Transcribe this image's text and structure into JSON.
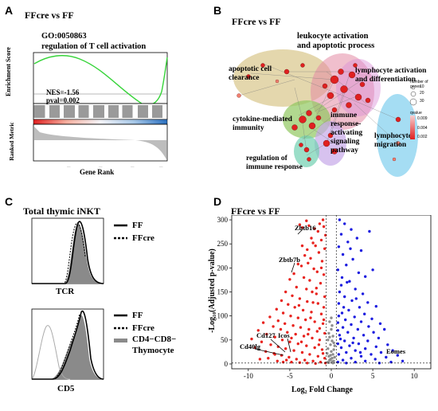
{
  "panels": {
    "A": {
      "label": "A",
      "title": "FFcre vs FF",
      "go_id": "GO:0050863",
      "term": "regulation of T cell activation",
      "nes": "NES=-1.56",
      "pval": "pval=0.002",
      "ylabel_top": "Enrichment Score",
      "ylabel_bottom": "Ranked Metric",
      "xlabel": "Gene Rank"
    },
    "B": {
      "label": "B",
      "title": "FFcre vs FF",
      "clusters": [
        "leukocyte activation\nand apoptotic process",
        "apoptotic cell\nclearance",
        "lymphocyte activation\nand differentiation",
        "cytokine-mediated\nimmunity",
        "immune\nresponse-\nactivating\nsignaling\npathway",
        "lymphocyte\nmigration",
        "regulation of\nimmune response"
      ],
      "legend_size_title": "number of genes",
      "legend_sizes": [
        "10",
        "20",
        "30"
      ],
      "legend_q_title": "qvalue",
      "legend_q_ticks": [
        "0.009",
        "0.004",
        "0.002"
      ]
    },
    "C": {
      "label": "C",
      "title": "Total thymic iNKT",
      "top_legend": [
        "FF",
        "FFcre"
      ],
      "top_xlabel": "TCR",
      "bottom_legend": [
        "FF",
        "FFcre",
        "CD4−CD8−",
        "Thymocyte"
      ],
      "bottom_xlabel": "CD5"
    },
    "D": {
      "label": "D",
      "title": "FFcre vs FF",
      "genes": [
        "Zbtb16",
        "Zbtb7b",
        "Cd127",
        "Icos",
        "Cd40lg",
        "Eomes"
      ]
    }
  },
  "chart_data": {
    "type": "scatter",
    "xlabel": "Log₂ Fold Change",
    "ylabel": "-Log₁₀(Adjusted p-value)",
    "xlim": [
      -12,
      12
    ],
    "ylim": [
      -10,
      310
    ],
    "xticks": [
      -10,
      -5,
      0,
      5,
      10
    ],
    "yticks": [
      0,
      50,
      100,
      150,
      200,
      250,
      300
    ],
    "grid": false,
    "colors": {
      "down": "#e8231e",
      "up": "#1c1ce0",
      "ns": "#8c8c8c"
    },
    "series": [
      {
        "group": "down",
        "points": [
          [
            -1.0,
            300
          ],
          [
            -1.4,
            292
          ],
          [
            -0.9,
            286
          ],
          [
            -2.0,
            282
          ],
          [
            -1.6,
            276
          ],
          [
            -0.7,
            268
          ],
          [
            -2.4,
            262
          ],
          [
            -1.2,
            258
          ],
          [
            -3.0,
            298
          ],
          [
            -2.7,
            288
          ],
          [
            -3.8,
            290
          ],
          [
            -3.5,
            284
          ],
          [
            -2.2,
            252
          ],
          [
            -1.9,
            246
          ],
          [
            -0.8,
            240
          ],
          [
            -2.9,
            238
          ],
          [
            -1.5,
            232
          ],
          [
            -3.2,
            226
          ],
          [
            -2.5,
            220
          ],
          [
            -1.1,
            214
          ],
          [
            -4.0,
            208
          ],
          [
            -3.6,
            204
          ],
          [
            -2.1,
            198
          ],
          [
            -1.7,
            192
          ],
          [
            -0.9,
            186
          ],
          [
            -4.5,
            188
          ],
          [
            -3.3,
            180
          ],
          [
            -2.6,
            174
          ],
          [
            -1.3,
            168
          ],
          [
            -5.0,
            176
          ],
          [
            -4.2,
            160
          ],
          [
            -3.0,
            156
          ],
          [
            -2.3,
            150
          ],
          [
            -1.8,
            146
          ],
          [
            -0.8,
            140
          ],
          [
            -5.5,
            150
          ],
          [
            -4.7,
            142
          ],
          [
            -3.8,
            136
          ],
          [
            -2.9,
            130
          ],
          [
            -1.6,
            126
          ],
          [
            -6.0,
            132
          ],
          [
            -5.2,
            124
          ],
          [
            -4.4,
            118
          ],
          [
            -3.4,
            112
          ],
          [
            -2.4,
            108
          ],
          [
            -1.2,
            104
          ],
          [
            -6.6,
            114
          ],
          [
            -5.8,
            106
          ],
          [
            -4.9,
            100
          ],
          [
            -4.0,
            96
          ],
          [
            -3.1,
            92
          ],
          [
            -2.0,
            88
          ],
          [
            -1.0,
            84
          ],
          [
            -7.4,
            98
          ],
          [
            -6.4,
            90
          ],
          [
            -5.6,
            84
          ],
          [
            -4.6,
            80
          ],
          [
            -3.7,
            76
          ],
          [
            -2.7,
            72
          ],
          [
            -1.7,
            68
          ],
          [
            -0.8,
            64
          ],
          [
            -8.2,
            86
          ],
          [
            -7.0,
            78
          ],
          [
            -6.1,
            72
          ],
          [
            -5.3,
            66
          ],
          [
            -4.3,
            62
          ],
          [
            -3.3,
            58
          ],
          [
            -2.3,
            54
          ],
          [
            -1.4,
            50
          ],
          [
            -8.8,
            70
          ],
          [
            -7.8,
            62
          ],
          [
            -6.8,
            56
          ],
          [
            -5.9,
            50
          ],
          [
            -5.0,
            46
          ],
          [
            -4.0,
            42
          ],
          [
            -3.0,
            38
          ],
          [
            -2.0,
            34
          ],
          [
            -1.1,
            30
          ],
          [
            -9.6,
            52
          ],
          [
            -8.4,
            46
          ],
          [
            -7.3,
            40
          ],
          [
            -6.4,
            36
          ],
          [
            -5.5,
            32
          ],
          [
            -4.5,
            28
          ],
          [
            -3.5,
            24
          ],
          [
            -2.6,
            20
          ],
          [
            -1.6,
            16
          ],
          [
            -0.8,
            12
          ],
          [
            -9.2,
            34
          ],
          [
            -7.9,
            26
          ],
          [
            -6.9,
            22
          ],
          [
            -6.0,
            18
          ],
          [
            -5.1,
            14
          ],
          [
            -4.2,
            10
          ],
          [
            -3.2,
            8
          ],
          [
            -2.2,
            6
          ],
          [
            -1.3,
            4
          ],
          [
            -0.7,
            2
          ],
          [
            -5.4,
            8
          ],
          [
            -4.8,
            4
          ],
          [
            -3.8,
            3
          ],
          [
            -2.9,
            2
          ],
          [
            -1.9,
            1
          ],
          [
            -1.0,
            22
          ],
          [
            -1.5,
            40
          ],
          [
            -2.5,
            96
          ],
          [
            -3.9,
            122
          ],
          [
            -1.2,
            200
          ],
          [
            -2.8,
            210
          ],
          [
            -3.5,
            246
          ],
          [
            -0.9,
            118
          ],
          [
            -1.8,
            158
          ],
          [
            -2.2,
            128
          ],
          [
            -1.4,
            74
          ],
          [
            -0.9,
            92
          ],
          [
            -4.8,
            54
          ],
          [
            -3.6,
            46
          ],
          [
            -2.8,
            62
          ],
          [
            -6.8,
            20
          ],
          [
            -7.6,
            12
          ],
          [
            -8.6,
            10
          ],
          [
            -5.8,
            4
          ],
          [
            -6.5,
            6
          ]
        ]
      },
      {
        "group": "up",
        "points": [
          [
            1.0,
            300
          ],
          [
            1.6,
            292
          ],
          [
            2.4,
            280
          ],
          [
            1.2,
            270
          ],
          [
            3.1,
            262
          ],
          [
            2.0,
            254
          ],
          [
            0.9,
            244
          ],
          [
            4.6,
            276
          ],
          [
            3.6,
            236
          ],
          [
            1.4,
            228
          ],
          [
            2.6,
            218
          ],
          [
            1.8,
            206
          ],
          [
            0.8,
            196
          ],
          [
            3.3,
            190
          ],
          [
            4.1,
            182
          ],
          [
            2.2,
            172
          ],
          [
            1.2,
            164
          ],
          [
            2.9,
            156
          ],
          [
            5.0,
            196
          ],
          [
            3.8,
            146
          ],
          [
            1.6,
            140
          ],
          [
            2.5,
            132
          ],
          [
            0.9,
            126
          ],
          [
            4.4,
            128
          ],
          [
            3.4,
            118
          ],
          [
            2.1,
            112
          ],
          [
            1.3,
            106
          ],
          [
            5.4,
            120
          ],
          [
            4.0,
            104
          ],
          [
            2.8,
            98
          ],
          [
            1.7,
            92
          ],
          [
            0.8,
            86
          ],
          [
            4.9,
            94
          ],
          [
            3.6,
            88
          ],
          [
            2.4,
            82
          ],
          [
            1.4,
            76
          ],
          [
            5.9,
            84
          ],
          [
            4.5,
            78
          ],
          [
            3.2,
            72
          ],
          [
            2.0,
            66
          ],
          [
            1.0,
            60
          ],
          [
            6.4,
            72
          ],
          [
            5.1,
            66
          ],
          [
            3.9,
            60
          ],
          [
            2.7,
            54
          ],
          [
            1.6,
            48
          ],
          [
            0.8,
            42
          ],
          [
            5.7,
            54
          ],
          [
            4.4,
            48
          ],
          [
            3.3,
            42
          ],
          [
            2.2,
            38
          ],
          [
            1.2,
            34
          ],
          [
            6.8,
            40
          ],
          [
            5.4,
            36
          ],
          [
            4.1,
            32
          ],
          [
            2.9,
            28
          ],
          [
            1.8,
            24
          ],
          [
            0.9,
            20
          ],
          [
            7.4,
            28
          ],
          [
            6.0,
            24
          ],
          [
            4.8,
            20
          ],
          [
            3.6,
            16
          ],
          [
            2.4,
            12
          ],
          [
            1.4,
            8
          ],
          [
            0.8,
            4
          ],
          [
            8.0,
            18
          ],
          [
            6.6,
            14
          ],
          [
            5.3,
            10
          ],
          [
            4.1,
            6
          ],
          [
            2.9,
            4
          ],
          [
            1.8,
            2
          ],
          [
            8.6,
            6
          ],
          [
            7.2,
            4
          ],
          [
            5.8,
            2
          ],
          [
            1.0,
            150
          ],
          [
            1.3,
            180
          ],
          [
            2.3,
            240
          ],
          [
            0.9,
            100
          ],
          [
            1.5,
            118
          ],
          [
            3.0,
            136
          ],
          [
            1.1,
            52
          ],
          [
            2.6,
            44
          ],
          [
            3.5,
            24
          ],
          [
            1.9,
            170
          ],
          [
            0.8,
            70
          ]
        ]
      },
      {
        "group": "ns",
        "points": [
          [
            -0.4,
            4
          ],
          [
            -0.2,
            8
          ],
          [
            0.1,
            12
          ],
          [
            0.3,
            6
          ],
          [
            -0.3,
            16
          ],
          [
            0.2,
            20
          ],
          [
            0.0,
            26
          ],
          [
            -0.4,
            32
          ],
          [
            0.4,
            14
          ],
          [
            -0.1,
            40
          ],
          [
            0.1,
            48
          ],
          [
            -0.2,
            56
          ],
          [
            0.3,
            30
          ],
          [
            -0.3,
            64
          ],
          [
            0.0,
            72
          ],
          [
            0.2,
            2
          ],
          [
            -0.1,
            10
          ],
          [
            0.4,
            38
          ],
          [
            -0.5,
            22
          ],
          [
            0.1,
            80
          ],
          [
            -0.2,
            88
          ],
          [
            0.3,
            44
          ],
          [
            0.0,
            96
          ],
          [
            -0.4,
            50
          ],
          [
            0.2,
            58
          ],
          [
            -0.3,
            3
          ],
          [
            0.1,
            5
          ],
          [
            -0.1,
            18
          ]
        ]
      }
    ]
  }
}
